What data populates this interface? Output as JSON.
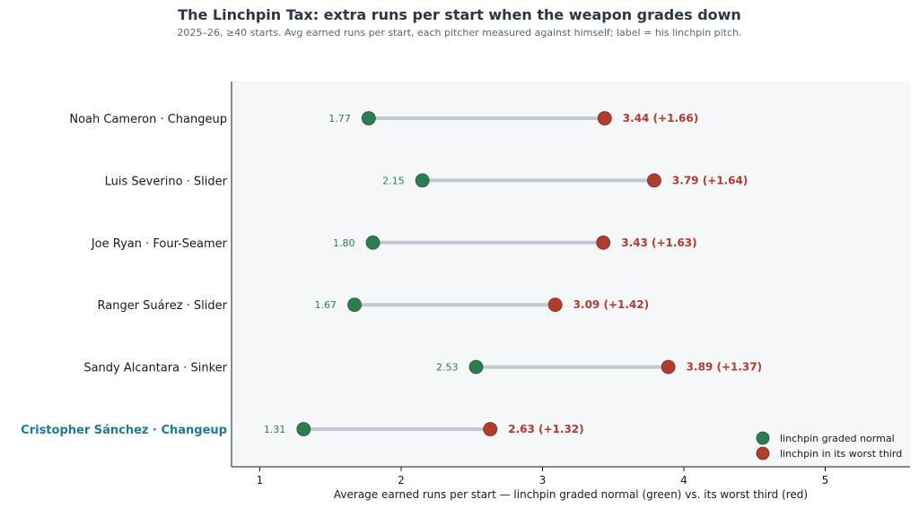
{
  "chart_data": {
    "type": "dumbbell",
    "title": "The Linchpin Tax: extra runs per start when the weapon grades down",
    "subtitle": "2025–26, ≥40 starts. Avg earned runs per start, each pitcher measured against himself; label = his linchpin pitch.",
    "xlabel": "Average earned runs per start — linchpin graded normal (green) vs. its worst third (red)",
    "xlim": [
      0.8,
      5.6
    ],
    "xticks": [
      1,
      2,
      3,
      4,
      5
    ],
    "grid": false,
    "legend_position": "lower-right",
    "series": [
      {
        "name": "linchpin graded normal",
        "color": "#2e7d4f"
      },
      {
        "name": "linchpin in its worst third",
        "color": "#b23c2e"
      }
    ],
    "rows": [
      {
        "label": "Noah Cameron  ·  Changeup",
        "low": 1.77,
        "high": 3.44,
        "low_label": "1.77",
        "high_label": "3.44  (+1.66)",
        "highlight": false
      },
      {
        "label": "Luis Severino  ·  Slider",
        "low": 2.15,
        "high": 3.79,
        "low_label": "2.15",
        "high_label": "3.79  (+1.64)",
        "highlight": false
      },
      {
        "label": "Joe Ryan  ·  Four-Seamer",
        "low": 1.8,
        "high": 3.43,
        "low_label": "1.80",
        "high_label": "3.43  (+1.63)",
        "highlight": false
      },
      {
        "label": "Ranger Suárez  ·  Slider",
        "low": 1.67,
        "high": 3.09,
        "low_label": "1.67",
        "high_label": "3.09  (+1.42)",
        "highlight": false
      },
      {
        "label": "Sandy Alcantara  ·  Sinker",
        "low": 2.53,
        "high": 3.89,
        "low_label": "2.53",
        "high_label": "3.89  (+1.37)",
        "highlight": false
      },
      {
        "label": "Cristopher Sánchez  ·  Changeup",
        "low": 1.31,
        "high": 2.63,
        "low_label": "1.31",
        "high_label": "2.63  (+1.32)",
        "highlight": true
      }
    ],
    "colors": {
      "connector": "#c2c8d2",
      "plot_background": "#f5f7f9",
      "highlight_label": "#1f7a93"
    }
  }
}
